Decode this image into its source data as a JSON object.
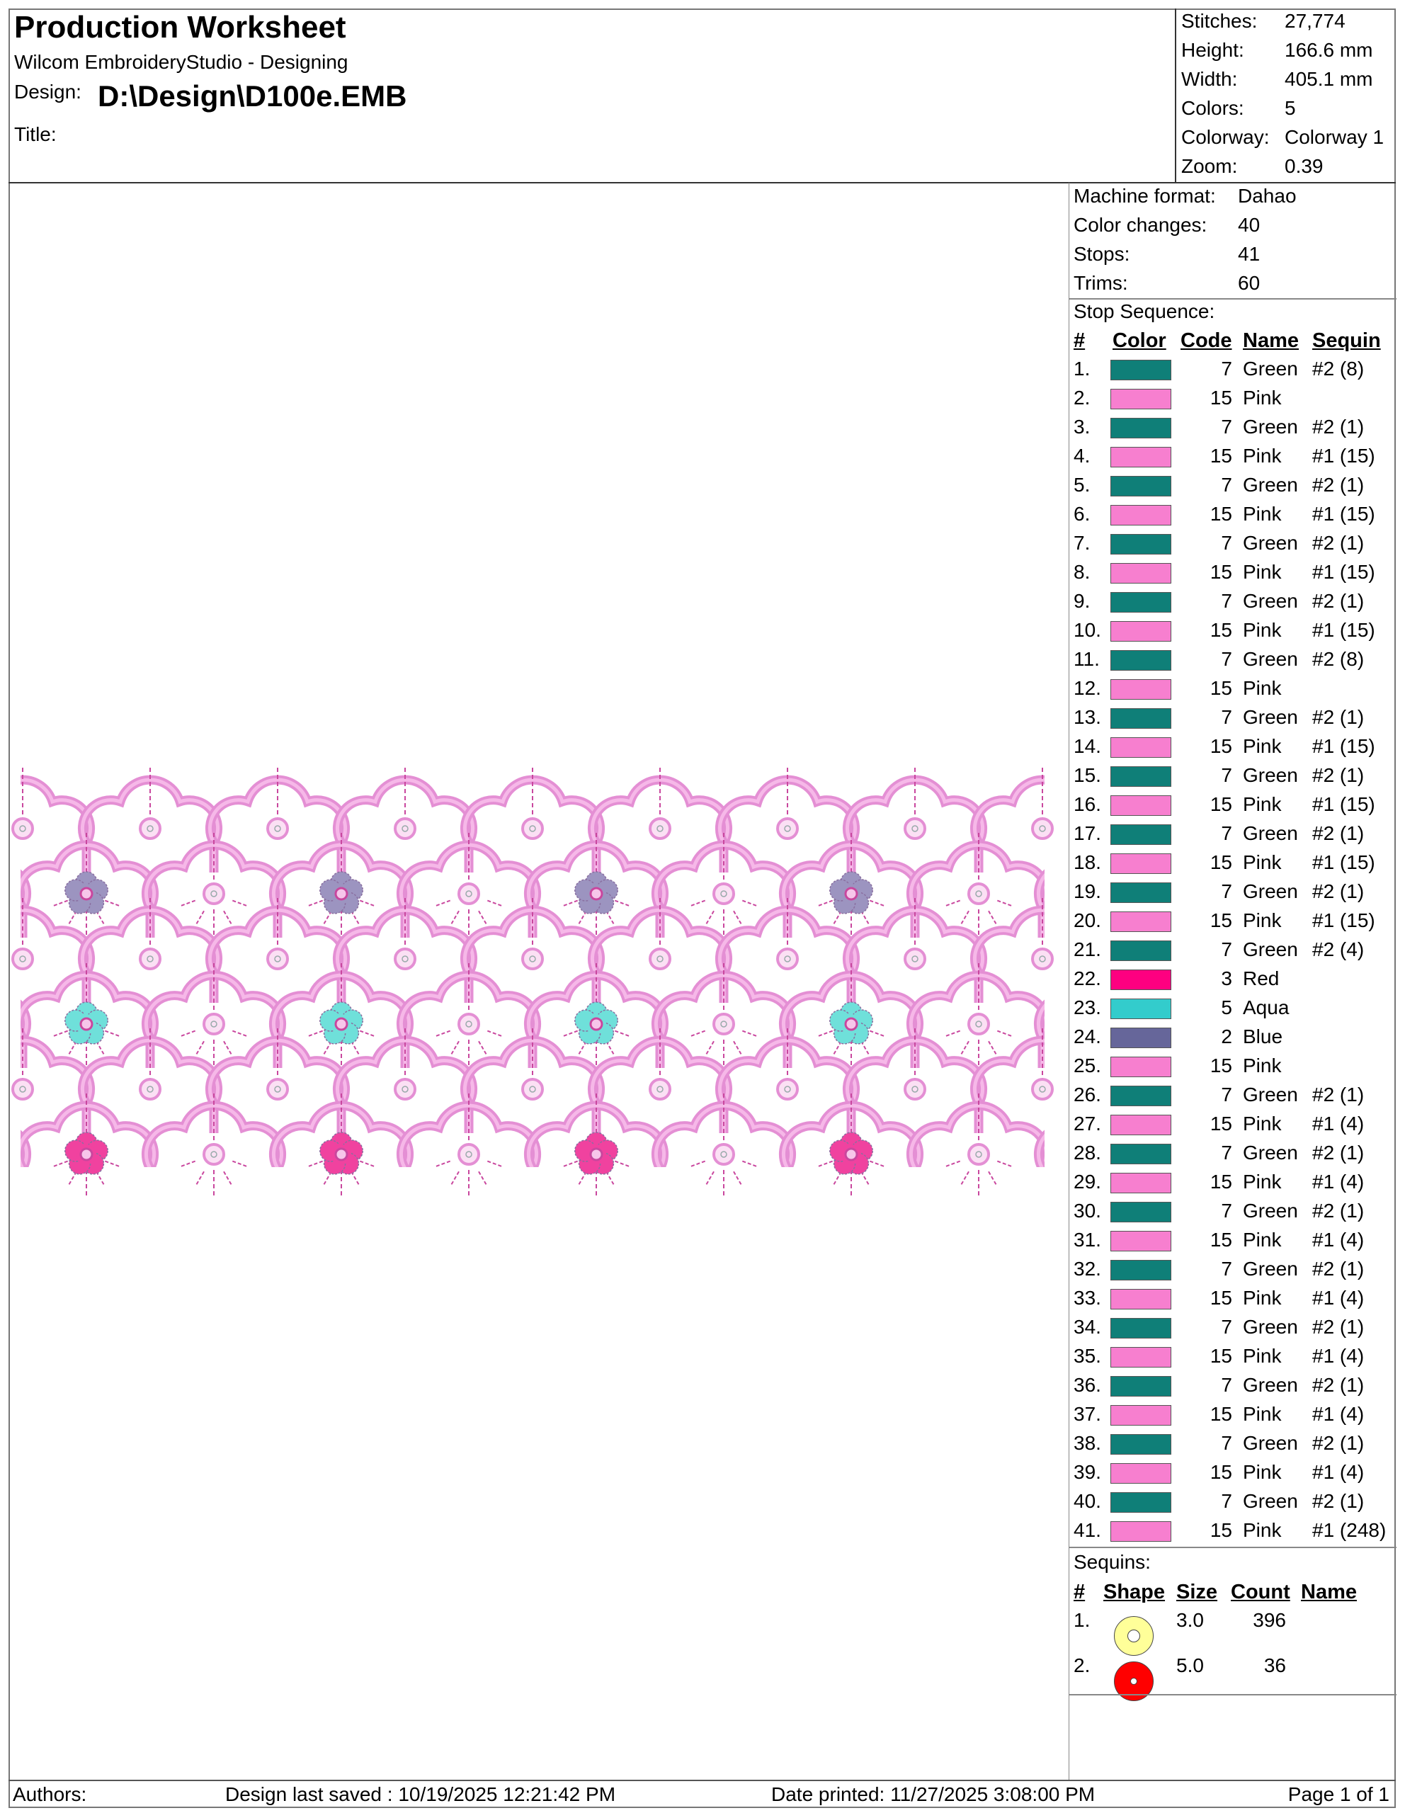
{
  "header": {
    "title": "Production Worksheet",
    "app": "Wilcom EmbroideryStudio - Designing",
    "design_label": "Design:",
    "design_path": "D:\\Design\\D100e.EMB",
    "title_label": "Title:"
  },
  "stats": [
    {
      "label": "Stitches:",
      "value": "27,774"
    },
    {
      "label": "Height:",
      "value": "166.6 mm"
    },
    {
      "label": "Width:",
      "value": "405.1 mm"
    },
    {
      "label": "Colors:",
      "value": "5"
    },
    {
      "label": "Colorway:",
      "value": "Colorway 1"
    },
    {
      "label": "Zoom:",
      "value": "0.39"
    }
  ],
  "machine": [
    {
      "label": "Machine format:",
      "value": "Dahao"
    },
    {
      "label": "Color changes:",
      "value": "40"
    },
    {
      "label": "Stops:",
      "value": "41"
    },
    {
      "label": "Trims:",
      "value": "60"
    }
  ],
  "stop_sequence": {
    "title": "Stop Sequence:",
    "headers": {
      "num": "#",
      "color": "Color",
      "code": "Code",
      "name": "Name",
      "sequin": "Sequin"
    },
    "colors": {
      "Green": "#0f7f78",
      "Pink": "#f77fcf",
      "Red": "#fe0080",
      "Aqua": "#33cccc",
      "Blue": "#66669a"
    },
    "rows": [
      {
        "n": "1.",
        "code": "7",
        "name": "Green",
        "sequin": "#2 (8)"
      },
      {
        "n": "2.",
        "code": "15",
        "name": "Pink",
        "sequin": ""
      },
      {
        "n": "3.",
        "code": "7",
        "name": "Green",
        "sequin": "#2 (1)"
      },
      {
        "n": "4.",
        "code": "15",
        "name": "Pink",
        "sequin": "#1 (15)"
      },
      {
        "n": "5.",
        "code": "7",
        "name": "Green",
        "sequin": "#2 (1)"
      },
      {
        "n": "6.",
        "code": "15",
        "name": "Pink",
        "sequin": "#1 (15)"
      },
      {
        "n": "7.",
        "code": "7",
        "name": "Green",
        "sequin": "#2 (1)"
      },
      {
        "n": "8.",
        "code": "15",
        "name": "Pink",
        "sequin": "#1 (15)"
      },
      {
        "n": "9.",
        "code": "7",
        "name": "Green",
        "sequin": "#2 (1)"
      },
      {
        "n": "10.",
        "code": "15",
        "name": "Pink",
        "sequin": "#1 (15)"
      },
      {
        "n": "11.",
        "code": "7",
        "name": "Green",
        "sequin": "#2 (8)"
      },
      {
        "n": "12.",
        "code": "15",
        "name": "Pink",
        "sequin": ""
      },
      {
        "n": "13.",
        "code": "7",
        "name": "Green",
        "sequin": "#2 (1)"
      },
      {
        "n": "14.",
        "code": "15",
        "name": "Pink",
        "sequin": "#1 (15)"
      },
      {
        "n": "15.",
        "code": "7",
        "name": "Green",
        "sequin": "#2 (1)"
      },
      {
        "n": "16.",
        "code": "15",
        "name": "Pink",
        "sequin": "#1 (15)"
      },
      {
        "n": "17.",
        "code": "7",
        "name": "Green",
        "sequin": "#2 (1)"
      },
      {
        "n": "18.",
        "code": "15",
        "name": "Pink",
        "sequin": "#1 (15)"
      },
      {
        "n": "19.",
        "code": "7",
        "name": "Green",
        "sequin": "#2 (1)"
      },
      {
        "n": "20.",
        "code": "15",
        "name": "Pink",
        "sequin": "#1 (15)"
      },
      {
        "n": "21.",
        "code": "7",
        "name": "Green",
        "sequin": "#2 (4)"
      },
      {
        "n": "22.",
        "code": "3",
        "name": "Red",
        "sequin": ""
      },
      {
        "n": "23.",
        "code": "5",
        "name": "Aqua",
        "sequin": ""
      },
      {
        "n": "24.",
        "code": "2",
        "name": "Blue",
        "sequin": ""
      },
      {
        "n": "25.",
        "code": "15",
        "name": "Pink",
        "sequin": ""
      },
      {
        "n": "26.",
        "code": "7",
        "name": "Green",
        "sequin": "#2 (1)"
      },
      {
        "n": "27.",
        "code": "15",
        "name": "Pink",
        "sequin": "#1 (4)"
      },
      {
        "n": "28.",
        "code": "7",
        "name": "Green",
        "sequin": "#2 (1)"
      },
      {
        "n": "29.",
        "code": "15",
        "name": "Pink",
        "sequin": "#1 (4)"
      },
      {
        "n": "30.",
        "code": "7",
        "name": "Green",
        "sequin": "#2 (1)"
      },
      {
        "n": "31.",
        "code": "15",
        "name": "Pink",
        "sequin": "#1 (4)"
      },
      {
        "n": "32.",
        "code": "7",
        "name": "Green",
        "sequin": "#2 (1)"
      },
      {
        "n": "33.",
        "code": "15",
        "name": "Pink",
        "sequin": "#1 (4)"
      },
      {
        "n": "34.",
        "code": "7",
        "name": "Green",
        "sequin": "#2 (1)"
      },
      {
        "n": "35.",
        "code": "15",
        "name": "Pink",
        "sequin": "#1 (4)"
      },
      {
        "n": "36.",
        "code": "7",
        "name": "Green",
        "sequin": "#2 (1)"
      },
      {
        "n": "37.",
        "code": "15",
        "name": "Pink",
        "sequin": "#1 (4)"
      },
      {
        "n": "38.",
        "code": "7",
        "name": "Green",
        "sequin": "#2 (1)"
      },
      {
        "n": "39.",
        "code": "15",
        "name": "Pink",
        "sequin": "#1 (4)"
      },
      {
        "n": "40.",
        "code": "7",
        "name": "Green",
        "sequin": "#2 (1)"
      },
      {
        "n": "41.",
        "code": "15",
        "name": "Pink",
        "sequin": "#1 (248)"
      }
    ]
  },
  "sequins": {
    "title": "Sequins:",
    "headers": {
      "num": "#",
      "shape": "Shape",
      "size": "Size",
      "count": "Count",
      "name": "Name"
    },
    "rows": [
      {
        "n": "1.",
        "size": "3.0",
        "count": "396",
        "name": "",
        "color": "#ffff99"
      },
      {
        "n": "2.",
        "size": "5.0",
        "count": "36",
        "name": "",
        "color": "#ff0000"
      }
    ]
  },
  "footer": {
    "authors": "Authors:",
    "saved": "Design last saved : 10/19/2025 12:21:42 PM",
    "printed": "Date printed: 11/27/2025 3:08:00 PM",
    "page": "Page 1 of 1"
  },
  "design_colors": {
    "outline": "#e48fd4",
    "outline_light": "#f6b8e8",
    "stitch": "#c9479e",
    "flower_row1": "#9c94c0",
    "flower_row2": "#6fe0da",
    "flower_row3": "#f0429f"
  }
}
